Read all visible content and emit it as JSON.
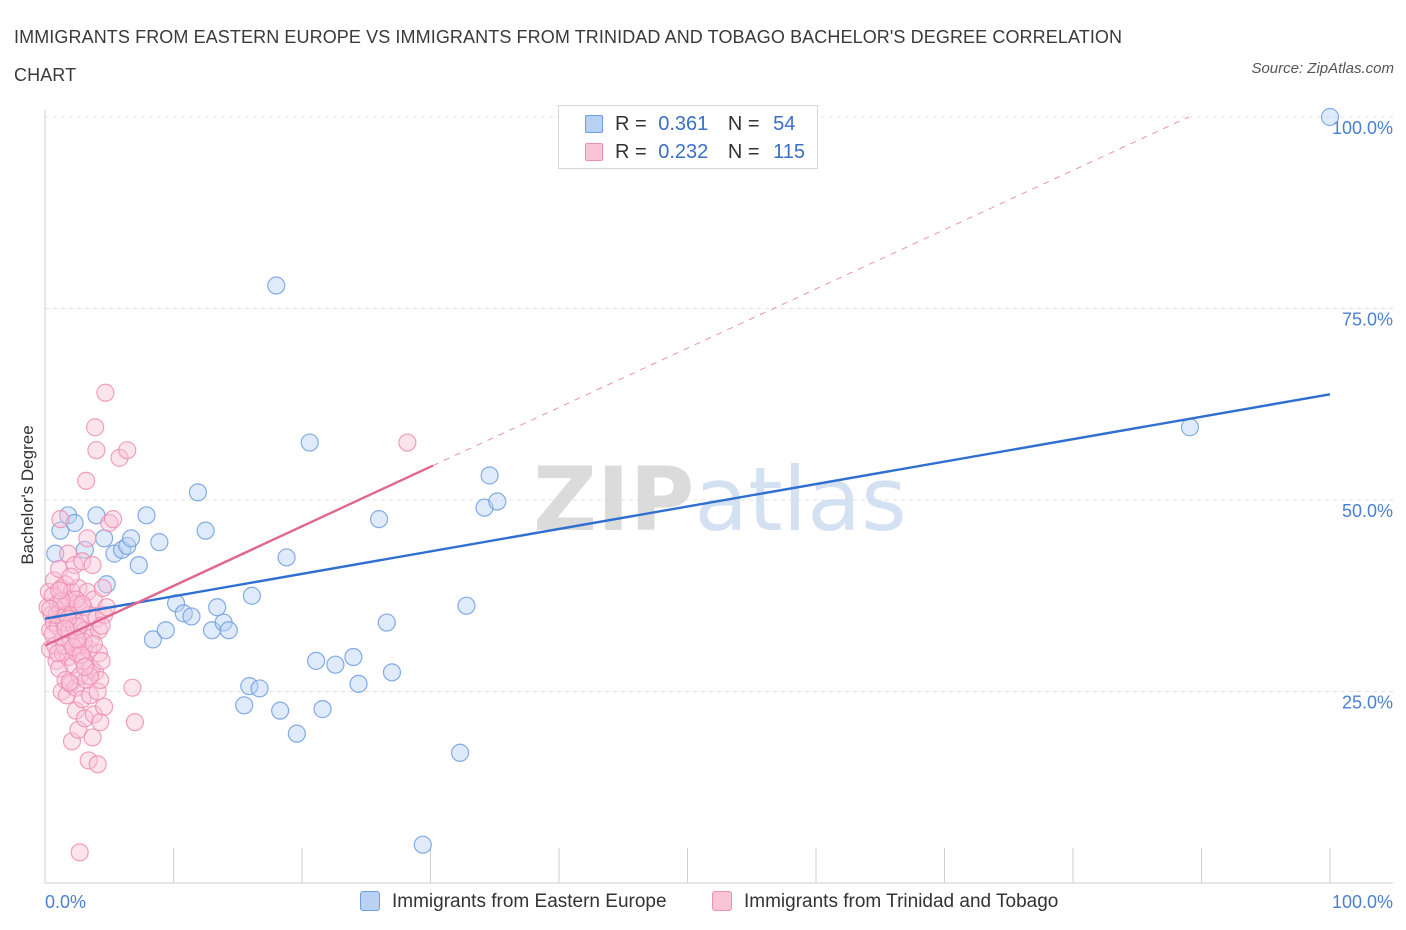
{
  "chart_data": {
    "type": "scatter",
    "title": "IMMIGRANTS FROM EASTERN EUROPE VS IMMIGRANTS FROM TRINIDAD AND TOBAGO BACHELOR'S DEGREE CORRELATION CHART",
    "source": "Source: ZipAtlas.com",
    "xlabel": "",
    "ylabel": "Bachelor's Degree",
    "xlim": [
      0,
      100
    ],
    "ylim": [
      0,
      100
    ],
    "x_tick_labels": [
      "0.0%",
      "100.0%"
    ],
    "y_tick_labels": [
      {
        "value": 25,
        "label": "25.0%"
      },
      {
        "value": 50,
        "label": "50.0%"
      },
      {
        "value": 75,
        "label": "75.0%"
      },
      {
        "value": 100,
        "label": "100.0%"
      }
    ],
    "grid": true,
    "watermark": "ZIPatlas",
    "legend_stats": [
      {
        "r_label": "R =",
        "r": "0.361",
        "n_label": "N =",
        "n": "54"
      },
      {
        "r_label": "R =",
        "r": "0.232",
        "n_label": "N =",
        "n": "115"
      }
    ],
    "series": [
      {
        "name": "Immigrants from Eastern Europe",
        "color": "#6f9fe0",
        "fill": "#b9d1f3",
        "trend_color": "#2f6fd0",
        "trend": {
          "x": [
            0,
            100
          ],
          "y": [
            34.5,
            63.8
          ],
          "dashed": false
        },
        "points": [
          [
            0.8,
            43
          ],
          [
            1.2,
            46
          ],
          [
            1.8,
            48
          ],
          [
            2.3,
            47
          ],
          [
            3.1,
            43.5
          ],
          [
            4.0,
            48
          ],
          [
            4.6,
            45
          ],
          [
            4.8,
            39
          ],
          [
            5.4,
            43
          ],
          [
            6.0,
            43.5
          ],
          [
            6.4,
            44
          ],
          [
            6.7,
            45
          ],
          [
            7.3,
            41.5
          ],
          [
            7.9,
            48
          ],
          [
            8.4,
            31.8
          ],
          [
            8.9,
            44.5
          ],
          [
            9.4,
            33
          ],
          [
            10.2,
            36.5
          ],
          [
            10.8,
            35.2
          ],
          [
            11.4,
            34.8
          ],
          [
            11.9,
            51
          ],
          [
            12.5,
            46
          ],
          [
            13.0,
            33
          ],
          [
            13.4,
            36
          ],
          [
            13.9,
            34
          ],
          [
            14.3,
            33
          ],
          [
            16.1,
            37.5
          ],
          [
            15.5,
            23.2
          ],
          [
            15.9,
            25.7
          ],
          [
            16.7,
            25.4
          ],
          [
            18.0,
            78
          ],
          [
            18.3,
            22.5
          ],
          [
            18.8,
            42.5
          ],
          [
            19.6,
            19.5
          ],
          [
            20.6,
            57.5
          ],
          [
            21.1,
            29
          ],
          [
            21.6,
            22.7
          ],
          [
            22.6,
            28.5
          ],
          [
            24.0,
            29.5
          ],
          [
            24.4,
            26
          ],
          [
            26.0,
            47.5
          ],
          [
            26.6,
            34
          ],
          [
            27.0,
            27.5
          ],
          [
            29.4,
            5
          ],
          [
            32.3,
            17
          ],
          [
            32.8,
            36.2
          ],
          [
            34.2,
            49
          ],
          [
            34.6,
            53.2
          ],
          [
            35.2,
            49.8
          ],
          [
            89.1,
            59.5
          ],
          [
            100,
            100
          ]
        ]
      },
      {
        "name": "Immigrants from Trinidad and Tobago",
        "color": "#ef8fb0",
        "fill": "#f8c4d6",
        "trend_color": "#e0678f",
        "trend": {
          "x": [
            0,
            30.2
          ],
          "y": [
            31.0,
            54.5
          ],
          "dashed": false
        },
        "trend_extension": {
          "x": [
            30.2,
            89.0
          ],
          "y": [
            54.5,
            100
          ],
          "dashed": true
        },
        "points": [
          [
            0.2,
            36
          ],
          [
            0.3,
            38
          ],
          [
            0.4,
            33
          ],
          [
            0.4,
            30.5
          ],
          [
            0.5,
            35
          ],
          [
            0.6,
            37.5
          ],
          [
            0.7,
            34
          ],
          [
            0.7,
            39.5
          ],
          [
            0.8,
            31
          ],
          [
            0.9,
            29
          ],
          [
            1.0,
            36.5
          ],
          [
            1.0,
            33.5
          ],
          [
            1.1,
            28
          ],
          [
            1.1,
            41
          ],
          [
            1.2,
            35.5
          ],
          [
            1.2,
            47.5
          ],
          [
            1.3,
            25
          ],
          [
            1.3,
            38.5
          ],
          [
            1.4,
            32
          ],
          [
            1.4,
            30
          ],
          [
            1.5,
            36
          ],
          [
            1.5,
            34
          ],
          [
            1.6,
            26.5
          ],
          [
            1.6,
            39
          ],
          [
            1.7,
            24.5
          ],
          [
            1.7,
            35
          ],
          [
            1.8,
            29.5
          ],
          [
            1.8,
            43
          ],
          [
            1.9,
            37
          ],
          [
            1.9,
            33
          ],
          [
            2.0,
            31.5
          ],
          [
            2.0,
            26
          ],
          [
            2.1,
            38
          ],
          [
            2.1,
            18.5
          ],
          [
            2.2,
            35.5
          ],
          [
            2.2,
            28.5
          ],
          [
            2.3,
            41.5
          ],
          [
            2.3,
            33.5
          ],
          [
            2.4,
            25.5
          ],
          [
            2.4,
            22.5
          ],
          [
            2.5,
            36.5
          ],
          [
            2.5,
            30
          ],
          [
            2.6,
            20
          ],
          [
            2.6,
            38.5
          ],
          [
            2.7,
            27
          ],
          [
            2.7,
            4
          ],
          [
            2.8,
            34
          ],
          [
            2.8,
            31
          ],
          [
            2.9,
            24
          ],
          [
            2.9,
            42
          ],
          [
            3.0,
            36
          ],
          [
            3.0,
            29
          ],
          [
            3.1,
            21.5
          ],
          [
            3.1,
            33
          ],
          [
            3.2,
            52.5
          ],
          [
            3.2,
            26.5
          ],
          [
            3.3,
            38
          ],
          [
            3.3,
            45
          ],
          [
            3.4,
            30.5
          ],
          [
            3.4,
            16
          ],
          [
            3.5,
            35
          ],
          [
            3.5,
            24.5
          ],
          [
            3.6,
            28
          ],
          [
            3.6,
            32
          ],
          [
            3.7,
            41.5
          ],
          [
            3.7,
            19
          ],
          [
            3.8,
            22
          ],
          [
            3.8,
            37
          ],
          [
            3.9,
            59.5
          ],
          [
            3.9,
            27.5
          ],
          [
            4.0,
            34.5
          ],
          [
            4.0,
            56.5
          ],
          [
            4.1,
            25
          ],
          [
            4.1,
            15.5
          ],
          [
            4.2,
            30
          ],
          [
            4.2,
            33
          ],
          [
            4.3,
            21
          ],
          [
            4.3,
            26.5
          ],
          [
            4.4,
            29
          ],
          [
            4.5,
            38.5
          ],
          [
            4.6,
            35
          ],
          [
            4.6,
            23
          ],
          [
            4.7,
            64
          ],
          [
            4.8,
            36
          ],
          [
            5.0,
            47
          ],
          [
            5.3,
            47.5
          ],
          [
            5.8,
            55.5
          ],
          [
            6.4,
            56.5
          ],
          [
            6.8,
            25.5
          ],
          [
            7.0,
            21
          ],
          [
            0.9,
            35
          ],
          [
            1.5,
            31
          ],
          [
            2.0,
            40
          ],
          [
            2.6,
            33.5
          ],
          [
            3.0,
            31.5
          ],
          [
            1.0,
            30
          ],
          [
            1.8,
            34.5
          ],
          [
            2.4,
            37
          ],
          [
            0.6,
            32.5
          ],
          [
            1.3,
            36.8
          ],
          [
            2.2,
            30.8
          ],
          [
            3.5,
            27
          ],
          [
            2.8,
            29.8
          ],
          [
            1.6,
            33.2
          ],
          [
            0.4,
            35.8
          ],
          [
            1.1,
            38.2
          ],
          [
            2.9,
            36.4
          ],
          [
            3.8,
            31.2
          ],
          [
            4.4,
            33.6
          ],
          [
            1.9,
            26.2
          ],
          [
            2.5,
            31.8
          ],
          [
            3.1,
            28.2
          ],
          [
            28.2,
            57.5
          ]
        ]
      }
    ]
  }
}
